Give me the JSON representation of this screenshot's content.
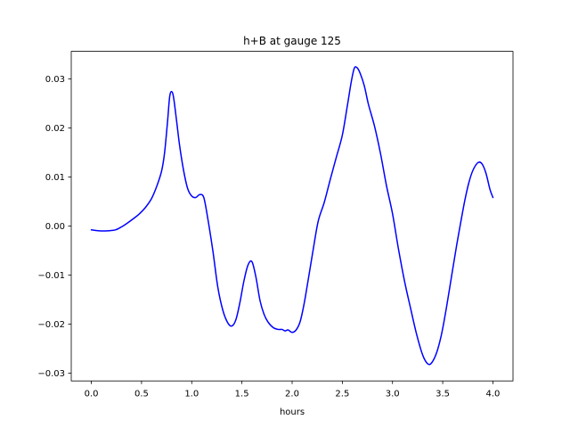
{
  "chart_data": {
    "type": "line",
    "title": "h+B at gauge 125",
    "xlabel": "hours",
    "ylabel": "",
    "line_color": "#0000ff",
    "grid": false,
    "legend": "none",
    "xlim": [
      -0.2,
      4.2
    ],
    "ylim": [
      -0.0316,
      0.0356
    ],
    "x_ticks": [
      0.0,
      0.5,
      1.0,
      1.5,
      2.0,
      2.5,
      3.0,
      3.5,
      4.0
    ],
    "x_tick_labels": [
      "0.0",
      "0.5",
      "1.0",
      "1.5",
      "2.0",
      "2.5",
      "3.0",
      "3.5",
      "4.0"
    ],
    "y_ticks": [
      0.03,
      0.02,
      0.01,
      0.0,
      -0.01,
      -0.02,
      -0.03
    ],
    "y_tick_labels": [
      "0.03",
      "0.02",
      "0.01",
      "0.00",
      "−0.01",
      "−0.02",
      "−0.03"
    ],
    "x": [
      0.0,
      0.08,
      0.16,
      0.24,
      0.3,
      0.36,
      0.42,
      0.48,
      0.54,
      0.6,
      0.65,
      0.7,
      0.73,
      0.76,
      0.78,
      0.8,
      0.82,
      0.85,
      0.88,
      0.92,
      0.96,
      1.0,
      1.04,
      1.08,
      1.12,
      1.16,
      1.21,
      1.26,
      1.31,
      1.36,
      1.4,
      1.44,
      1.48,
      1.52,
      1.56,
      1.6,
      1.64,
      1.68,
      1.72,
      1.76,
      1.81,
      1.86,
      1.9,
      1.93,
      1.96,
      2.0,
      2.04,
      2.08,
      2.12,
      2.16,
      2.21,
      2.26,
      2.32,
      2.38,
      2.44,
      2.5,
      2.55,
      2.59,
      2.62,
      2.65,
      2.68,
      2.72,
      2.76,
      2.82,
      2.88,
      2.94,
      3.0,
      3.06,
      3.12,
      3.18,
      3.24,
      3.3,
      3.35,
      3.39,
      3.44,
      3.49,
      3.54,
      3.59,
      3.64,
      3.68,
      3.72,
      3.76,
      3.8,
      3.85,
      3.89,
      3.93,
      3.97,
      4.0
    ],
    "y": [
      -0.0008,
      -0.001,
      -0.001,
      -0.0008,
      -0.0002,
      0.0006,
      0.0015,
      0.0025,
      0.0038,
      0.0056,
      0.008,
      0.0112,
      0.015,
      0.0215,
      0.0263,
      0.0274,
      0.0261,
      0.0213,
      0.0163,
      0.0112,
      0.0076,
      0.0061,
      0.0058,
      0.0064,
      0.0058,
      0.0015,
      -0.005,
      -0.0125,
      -0.0172,
      -0.0198,
      -0.0204,
      -0.0191,
      -0.0156,
      -0.0112,
      -0.008,
      -0.0073,
      -0.0105,
      -0.0152,
      -0.018,
      -0.0196,
      -0.0207,
      -0.0211,
      -0.0211,
      -0.0214,
      -0.0212,
      -0.0217,
      -0.0212,
      -0.0195,
      -0.0158,
      -0.011,
      -0.0048,
      0.001,
      0.0048,
      0.0095,
      0.014,
      0.0185,
      0.0245,
      0.0295,
      0.0322,
      0.0322,
      0.031,
      0.0285,
      0.0248,
      0.0204,
      0.0148,
      0.0082,
      0.0025,
      -0.0048,
      -0.0113,
      -0.0168,
      -0.0221,
      -0.0263,
      -0.0281,
      -0.0279,
      -0.0258,
      -0.0219,
      -0.0163,
      -0.01,
      -0.0038,
      0.0008,
      0.0052,
      0.0088,
      0.0113,
      0.0129,
      0.0127,
      0.0108,
      0.0075,
      0.0058
    ]
  }
}
